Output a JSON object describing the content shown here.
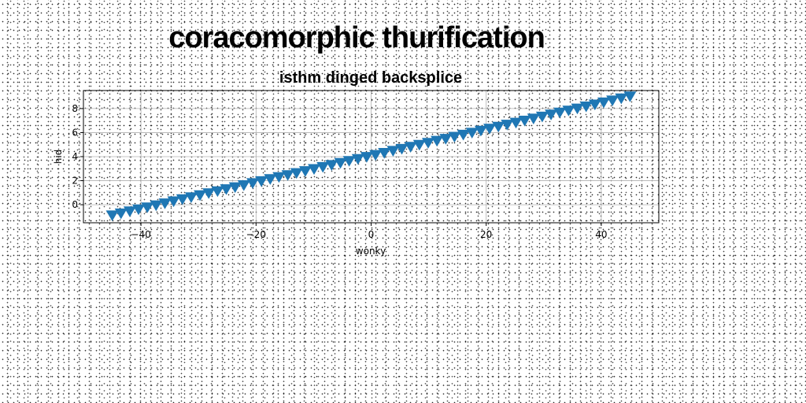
{
  "chart_data": {
    "type": "scatter",
    "title": "coracomorphic thurification",
    "subtitle": "isthm dinged backsplice",
    "xlabel": "wonky",
    "ylabel": "hid",
    "xlim": [
      -50,
      50
    ],
    "ylim": [
      -1.5,
      9.5
    ],
    "xticks": [
      -40,
      -20,
      0,
      20,
      40
    ],
    "yticks": [
      0,
      2,
      4,
      6,
      8
    ],
    "grid": true,
    "marker": "triangle-down",
    "color": "#1f77b4",
    "series": [
      {
        "x_start": -45,
        "x_end": 45,
        "n": 60,
        "y_start": -0.9,
        "y_end": 9.0
      }
    ]
  }
}
